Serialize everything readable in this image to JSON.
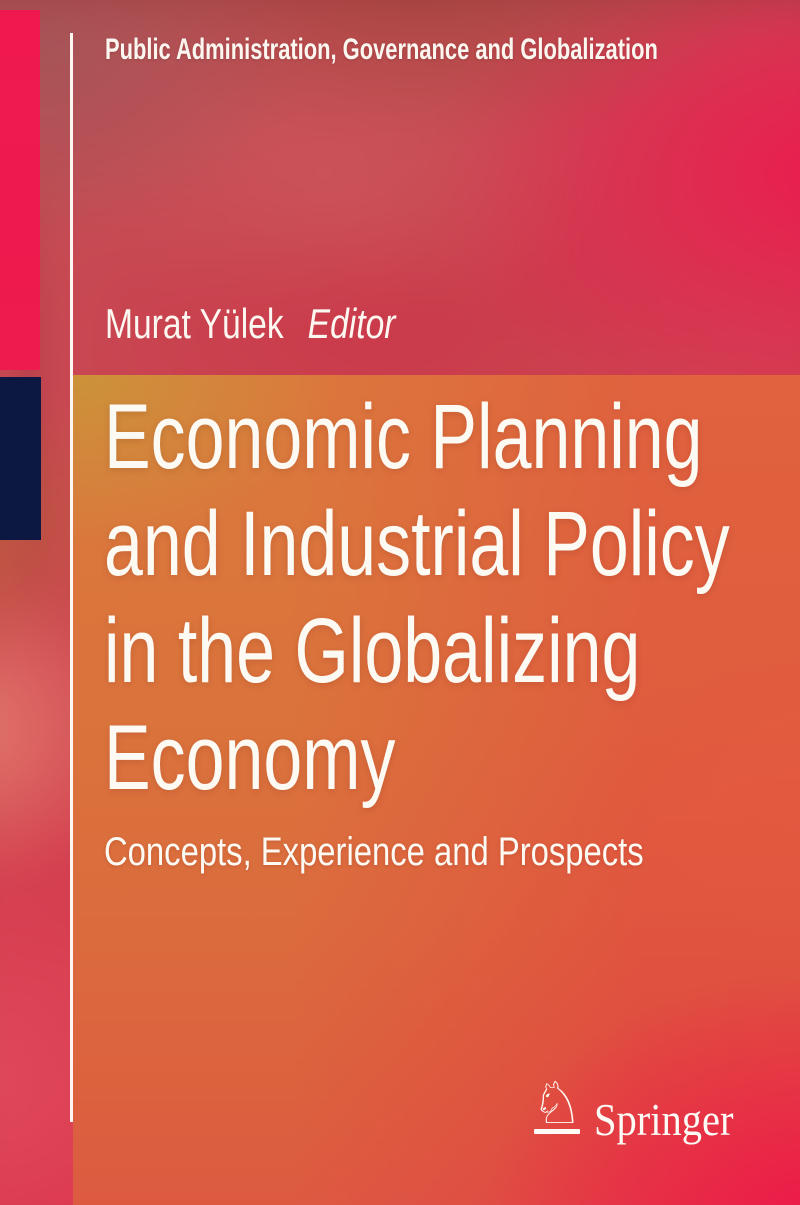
{
  "series": {
    "title": "Public Administration, Governance and Globalization"
  },
  "author": {
    "name": "Murat Yülek",
    "role": "Editor"
  },
  "book": {
    "title_lines": [
      "Economic Planning",
      "and Industrial Policy",
      "in the Globalizing",
      "Economy"
    ],
    "subtitle": "Concepts, Experience and Prospects"
  },
  "publisher": {
    "name": "Springer",
    "knight_icon": "♘"
  },
  "colors": {
    "accent_pink": "#ee1a4e",
    "accent_navy": "#0c1742",
    "rule_white": "#fdfcfa",
    "panel_orange": "#dc713c",
    "panel_gold": "#cb943a",
    "background_crimson": "#e81d4c",
    "background_rose": "#c05055",
    "text_white": "#fdfaf3"
  }
}
